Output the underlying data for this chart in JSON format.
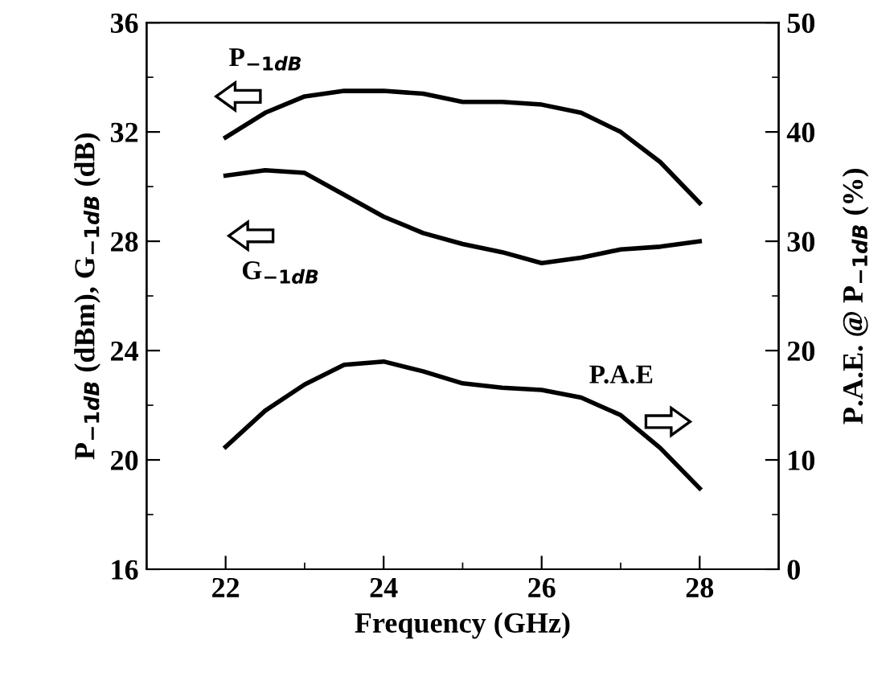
{
  "chart_data": {
    "type": "line",
    "xlabel": "Frequency (GHz)",
    "ylabel": "P$_{−1dB}$ (dBm), G$_{−1dB}$ (dB)",
    "y2label": "P.A.E. @ P$_{−1dB}$ (%)",
    "x": [
      22,
      22.5,
      23,
      23.5,
      24,
      24.5,
      25,
      25.5,
      26,
      26.5,
      27,
      27.5,
      28
    ],
    "xlim": [
      21,
      29
    ],
    "xticks": [
      22,
      24,
      26,
      28
    ],
    "ylim": [
      16,
      36
    ],
    "yticks": [
      16,
      20,
      24,
      28,
      32,
      36
    ],
    "y2lim": [
      0,
      50
    ],
    "y2ticks": [
      0,
      10,
      20,
      30,
      40,
      50
    ],
    "grid": false,
    "marker": "none",
    "line_style": "solid",
    "series": [
      {
        "name": "P$_{−1dB}$",
        "color": "#000000",
        "values": [
          31.8,
          32.7,
          33.3,
          33.5,
          33.5,
          33.4,
          33.1,
          33.1,
          33.0,
          32.7,
          32.0,
          30.9,
          29.4
        ]
      },
      {
        "name": "G$_{−1dB}$",
        "color": "#000000",
        "values": [
          30.4,
          30.6,
          30.5,
          29.7,
          28.9,
          28.3,
          27.9,
          27.6,
          27.2,
          27.4,
          27.7,
          27.8,
          28.0
        ]
      },
      {
        "name": "P.A.E",
        "color": "#000000",
        "axis": "y2",
        "values": [
          11.2,
          14.5,
          16.9,
          18.7,
          19.0,
          18.1,
          17.0,
          16.6,
          16.4,
          15.7,
          14.1,
          11.1,
          7.4
        ]
      }
    ]
  }
}
